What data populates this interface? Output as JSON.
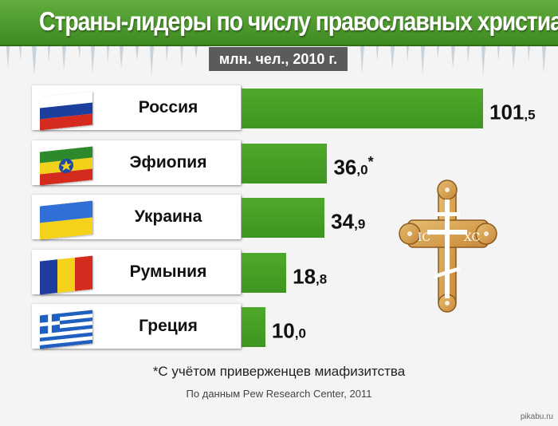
{
  "header": {
    "title": "Страны-лидеры по числу православных христиан",
    "subtitle": "млн. чел., 2010 г."
  },
  "chart_data": {
    "type": "bar",
    "orientation": "horizontal",
    "title": "Страны-лидеры по числу православных христиан",
    "subtitle": "млн. чел., 2010 г.",
    "categories": [
      "Россия",
      "Эфиопия",
      "Украина",
      "Румыния",
      "Греция"
    ],
    "values": [
      101.5,
      36.0,
      34.9,
      18.8,
      10.0
    ],
    "value_labels": [
      {
        "int": "101",
        "dec": ",5",
        "mark": ""
      },
      {
        "int": "36",
        "dec": ",0",
        "mark": "*"
      },
      {
        "int": "34",
        "dec": ",9",
        "mark": ""
      },
      {
        "int": "18",
        "dec": ",8",
        "mark": ""
      },
      {
        "int": "10",
        "dec": ",0",
        "mark": ""
      }
    ],
    "flags": [
      "flag-russia",
      "flag-ethiopia",
      "flag-ukraine",
      "flag-romania",
      "flag-greece"
    ],
    "bar_color": "#46a026",
    "xlim": [
      0,
      101.5
    ]
  },
  "cross": {
    "left_text": "IC",
    "right_text": "XC"
  },
  "footnote": "*С учётом приверженцев миафизитства",
  "source": "По данным Pew Research Center, 2011",
  "watermark": "pikabu.ru",
  "colors": {
    "title_green": "#4e9d2e",
    "bar_green": "#46a026",
    "subtitle_gray": "#5b5b5b"
  }
}
